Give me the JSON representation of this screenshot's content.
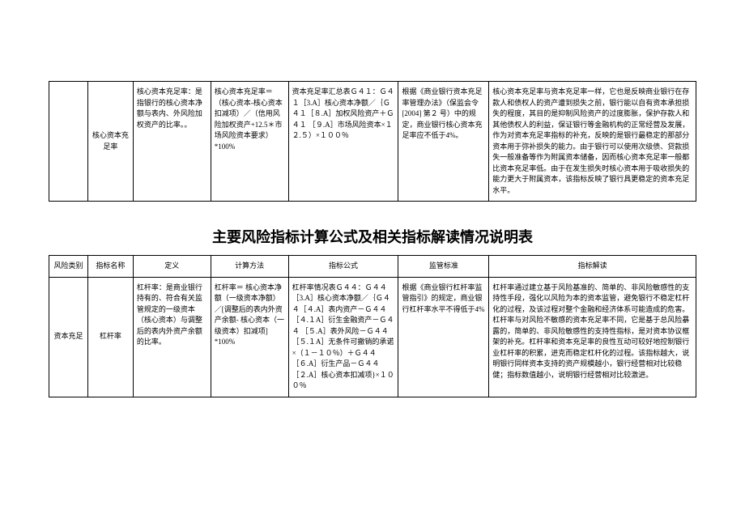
{
  "table1": {
    "rows": [
      {
        "c0": "",
        "c1": "核心资本充足率",
        "c2": "核心资本充足率：是指银行的核心资本净额与表内、外风险加权资产的比率。。",
        "c3": "核心资本充足率＝（核心资本-核心资本扣减项）／（信用风险加权资产+12.5＊市场风险资本要求）*100%",
        "c4": "资本充足率汇总表Ｇ４１：Ｇ４１［3.A］核心资本净额／｛Ｇ４１［８.A］加权风险资产＋Ｇ４１ ［９.A］市场风险资本×１２.５）×１００％",
        "c5": "根据《商业银行资本充足率管理办法》（保监会令[2004] 第２ 号）中的规定，商业银行核心资本充足率应不低于4%。",
        "c6": "核心资本充足率与资本充足率一样，它也是反映商业银行在存款人和债权人的资产遭到损失之前，银行能以自有资本承担损失的程度，其目的是抑制风险资产的过度膨胀，保护存款人和其他债权人的利益，保证银行等金融机构的正常经营及发展，作为对资本充足率指标的补充，反映的是银行最稳定的那部分资本用于弥补损失的能力。由于银行可以使用次级债、贷款损失一般准备等作为附属资本储备，因而核心资本充足率一般都比资本充足率低。由于在发生损失时核心资本用于吸收损失的能力更大于附属资本，该指标反映了银行具更稳定的资本充足水平。"
      }
    ]
  },
  "table2_title": "主要风险指标计算公式及相关指标解读情况说明表",
  "table2": {
    "headers": [
      "风险类别",
      "指标名称",
      "定义",
      "计算方法",
      "指标公式",
      "监管标准",
      "指标解读"
    ],
    "rows": [
      {
        "c0": "资本充足",
        "c1": "杠杆率",
        "c2": "杠杆率：是商业银行持有的、符合有关监管规定的一级资本（核心资本）与调整后的表内外资产余额的比率。",
        "c3": "杠杆率＝ 核心资本净额（一级资本净额）／[调整后的表内外资产余额- 核心资本（一级资本）扣减项] *100%",
        "c4": "杠杆率情况表Ｇ４４：Ｇ４４［3.A］核心资本净额／｛Ｇ４４［４.A］表内资产－Ｇ４４［４.１A］衍生金融资产－Ｇ４４ ［５.A］表外风险－Ｇ４４［５.１A］无条件可撤销的承诺×（１－１０％）＋Ｇ４４［６.A］衍生产品－Ｇ４４［２.A］核心资本扣减项}×１００％",
        "c5": "根据《商业银行杠杆率监管指引》的规定，商业银行杠杆率水平不得低于4%",
        "c6": "杠杆率通过建立基于风险基准的、简单的、非风险敏感性的支持性手段，强化以风险为本的资本监管，避免银行不稳定杠杆化的过程，及该过程对整个金融和经济体系可能造成的危害。杠杆率与对风险不敏感的资本充足率不同，它是基于总风险暴露的，简单的、非风险敏感性的支持性指标，是对资本协议框架的补充。杠杆率和资本充足率的良性互动可较好地控制银行业杠杆率的积累，进克而稳定杠杆化的过程。该指标越大，说明银行同样资本支持的资产规模越小，银行经营相对比较稳健；指标数值越小，说明银行经营相对比较激进。"
      }
    ]
  }
}
